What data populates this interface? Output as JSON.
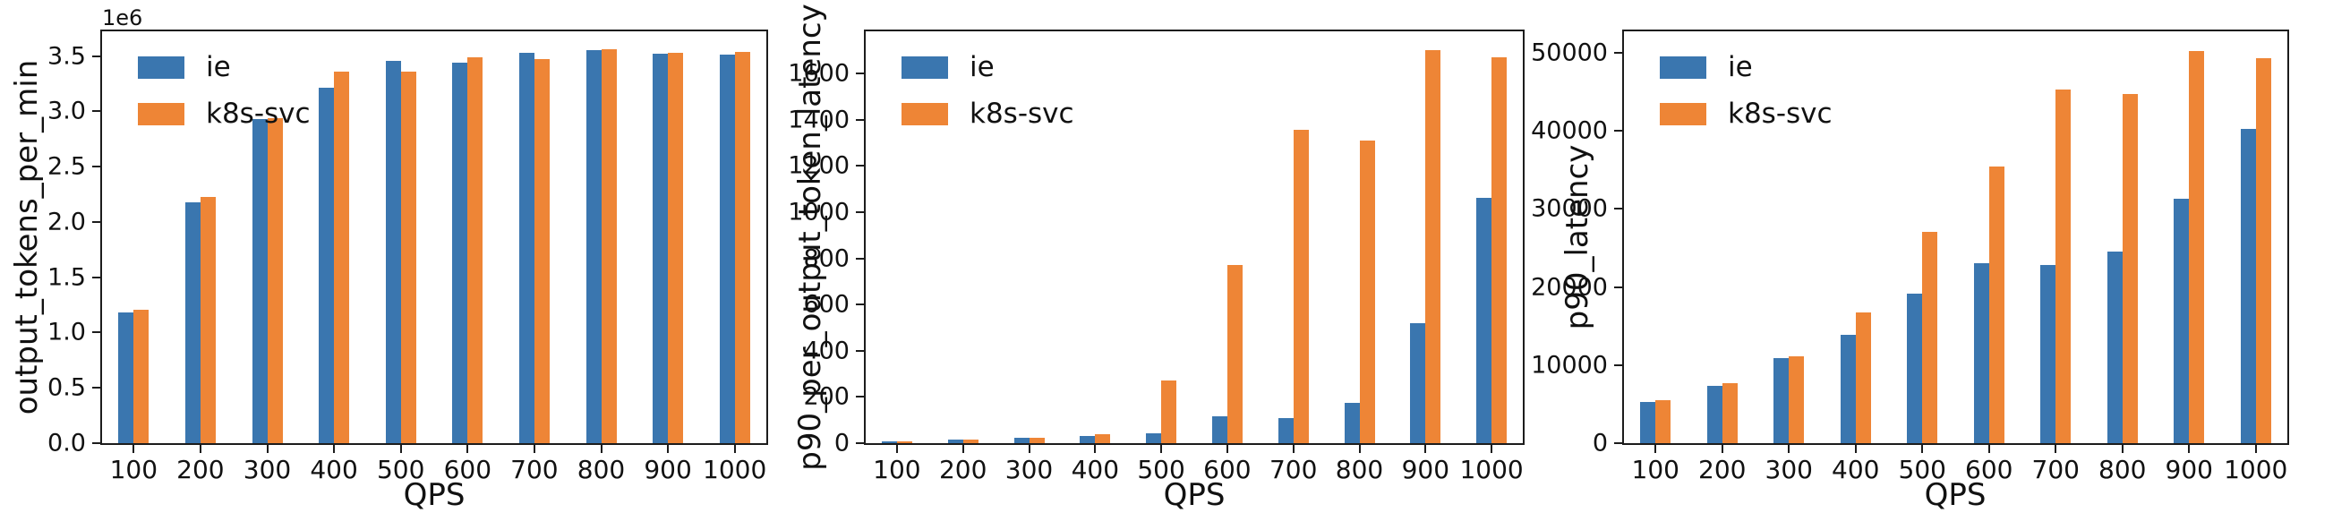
{
  "figure": {
    "background": "#ffffff",
    "xlabel": "QPS",
    "categories": [
      "100",
      "200",
      "300",
      "400",
      "500",
      "600",
      "700",
      "800",
      "900",
      "1000"
    ],
    "legend_entries": [
      "ie",
      "k8s-svc"
    ],
    "series_colors": {
      "ie": "#3a76af",
      "k8s-svc": "#ee8536"
    },
    "spine_color": "#1c1c1c"
  },
  "chart_data": [
    {
      "type": "bar",
      "title": "",
      "ylabel": "output_tokens_per_min",
      "xlabel": "QPS",
      "offset_label": "1e6",
      "legend": [
        "ie",
        "k8s-svc"
      ],
      "legend_position": "upper left",
      "grid": false,
      "categories": [
        "100",
        "200",
        "300",
        "400",
        "500",
        "600",
        "700",
        "800",
        "900",
        "1000"
      ],
      "ylim": [
        0,
        3740000
      ],
      "ytick_values": [
        0,
        500000,
        1000000,
        1500000,
        2000000,
        2500000,
        3000000,
        3500000
      ],
      "ytick_labels": [
        "0.0",
        "0.5",
        "1.0",
        "1.5",
        "2.0",
        "2.5",
        "3.0",
        "3.5"
      ],
      "series": [
        {
          "name": "ie",
          "color": "#3a76af",
          "values": [
            1180000,
            2180000,
            2930000,
            3210000,
            3460000,
            3440000,
            3530000,
            3550000,
            3520000,
            3510000
          ]
        },
        {
          "name": "k8s-svc",
          "color": "#ee8536",
          "values": [
            1210000,
            2230000,
            2940000,
            3360000,
            3360000,
            3490000,
            3470000,
            3560000,
            3530000,
            3540000
          ]
        }
      ]
    },
    {
      "type": "bar",
      "title": "",
      "ylabel": "p90_per_output_token_latency",
      "xlabel": "QPS",
      "offset_label": "",
      "legend": [
        "ie",
        "k8s-svc"
      ],
      "legend_position": "upper left",
      "grid": false,
      "categories": [
        "100",
        "200",
        "300",
        "400",
        "500",
        "600",
        "700",
        "800",
        "900",
        "1000"
      ],
      "ylim": [
        0,
        1790
      ],
      "ytick_values": [
        0,
        200,
        400,
        600,
        800,
        1000,
        1200,
        1400,
        1600
      ],
      "ytick_labels": [
        "0",
        "200",
        "400",
        "600",
        "800",
        "1000",
        "1200",
        "1400",
        "1600"
      ],
      "series": [
        {
          "name": "ie",
          "color": "#3a76af",
          "values": [
            8,
            15,
            22,
            31,
            44,
            118,
            107,
            175,
            520,
            1060
          ]
        },
        {
          "name": "k8s-svc",
          "color": "#ee8536",
          "values": [
            8,
            15,
            22,
            37,
            270,
            770,
            1355,
            1310,
            1700,
            1670
          ]
        }
      ]
    },
    {
      "type": "bar",
      "title": "",
      "ylabel": "p90_latency",
      "xlabel": "QPS",
      "offset_label": "",
      "legend": [
        "ie",
        "k8s-svc"
      ],
      "legend_position": "upper left",
      "grid": false,
      "categories": [
        "100",
        "200",
        "300",
        "400",
        "500",
        "600",
        "700",
        "800",
        "900",
        "1000"
      ],
      "ylim": [
        0,
        53000
      ],
      "ytick_values": [
        0,
        10000,
        20000,
        30000,
        40000,
        50000
      ],
      "ytick_labels": [
        "0",
        "10000",
        "20000",
        "30000",
        "40000",
        "50000"
      ],
      "series": [
        {
          "name": "ie",
          "color": "#3a76af",
          "values": [
            5300,
            7350,
            10900,
            13900,
            19200,
            23100,
            22850,
            24600,
            31300,
            40250
          ]
        },
        {
          "name": "k8s-svc",
          "color": "#ee8536",
          "values": [
            5450,
            7650,
            11150,
            16800,
            27100,
            35450,
            45300,
            44750,
            50300,
            49300
          ]
        }
      ]
    }
  ]
}
